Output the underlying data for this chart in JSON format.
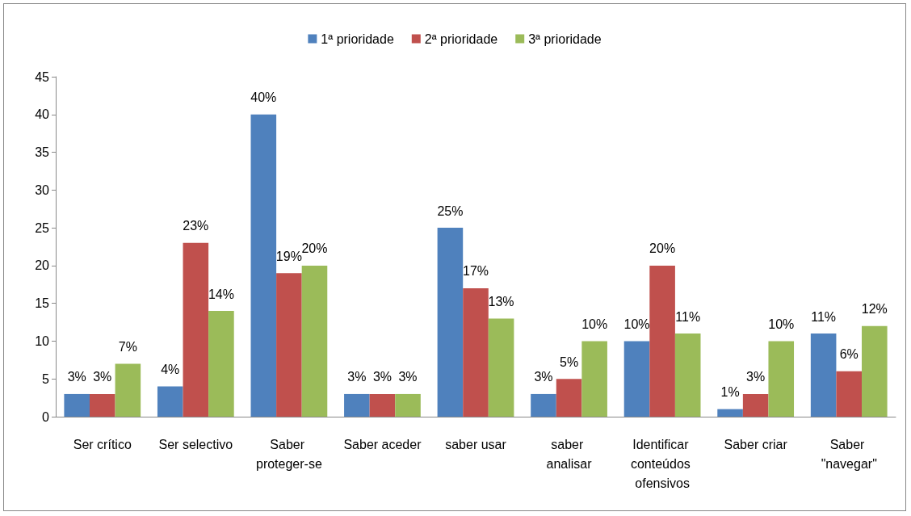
{
  "chart_data": {
    "type": "bar",
    "categories": [
      "Ser crítico",
      "Ser selectivo",
      "Saber proteger-se",
      "Saber aceder",
      "saber usar",
      "saber analisar",
      "Identificar conteúdos ofensivos",
      "Saber criar",
      "Saber \"navegar\""
    ],
    "series": [
      {
        "name": "1ª prioridade",
        "color": "#4f81bd",
        "values": [
          3,
          4,
          40,
          3,
          25,
          3,
          10,
          1,
          11
        ],
        "value_labels": [
          "3%",
          "4%",
          "40%",
          "3%",
          "25%",
          "3%",
          "10%",
          "1%",
          "11%"
        ]
      },
      {
        "name": "2ª prioridade",
        "color": "#c0504d",
        "values": [
          3,
          23,
          19,
          3,
          17,
          5,
          20,
          3,
          6
        ],
        "value_labels": [
          "3%",
          "23%",
          "19%",
          "3%",
          "17%",
          "5%",
          "20%",
          "3%",
          "6%"
        ]
      },
      {
        "name": "3ª prioridade",
        "color": "#9bbb59",
        "values": [
          7,
          14,
          20,
          3,
          13,
          10,
          11,
          10,
          12
        ],
        "value_labels": [
          "7%",
          "14%",
          "20%",
          "3%",
          "13%",
          "10%",
          "11%",
          "10%",
          "12%"
        ]
      }
    ],
    "ylim": [
      0,
      45
    ],
    "yticks": [
      0,
      5,
      10,
      15,
      20,
      25,
      30,
      35,
      40,
      45
    ],
    "grid": false,
    "legend": "top"
  }
}
